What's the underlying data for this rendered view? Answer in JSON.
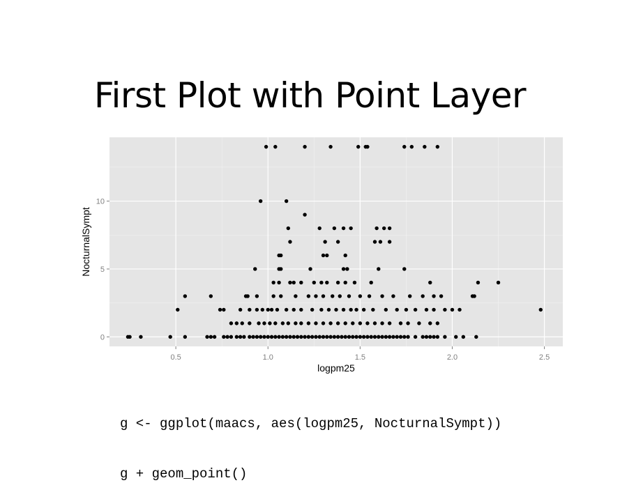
{
  "slide": {
    "title": "First Plot with Point Layer",
    "code_lines": [
      "g <- ggplot(maacs, aes(logpm25, NocturnalSympt))",
      "g + geom_point()"
    ]
  },
  "colors": {
    "panel_bg": "#e5e5e5",
    "grid": "#ffffff",
    "point": "#000000",
    "axis_text": "#7f7f7f"
  },
  "chart_data": {
    "type": "scatter",
    "title": "",
    "xlabel": "logpm25",
    "ylabel": "NocturnalSympt",
    "xlim": [
      0.14,
      2.6
    ],
    "ylim": [
      -0.7,
      14.7
    ],
    "x_ticks": [
      0.5,
      1.0,
      1.5,
      2.0,
      2.5
    ],
    "x_tick_labels": [
      "0.5",
      "1.0",
      "1.5",
      "2.0",
      "2.5"
    ],
    "y_ticks": [
      0,
      5,
      10
    ],
    "y_tick_labels": [
      "0",
      "5",
      "10"
    ],
    "grid": true,
    "points": [
      [
        0.99,
        14
      ],
      [
        1.04,
        14
      ],
      [
        1.2,
        14
      ],
      [
        1.34,
        14
      ],
      [
        1.49,
        14
      ],
      [
        1.53,
        14
      ],
      [
        1.54,
        14
      ],
      [
        1.74,
        14
      ],
      [
        1.78,
        14
      ],
      [
        1.85,
        14
      ],
      [
        1.92,
        14
      ],
      [
        0.96,
        10
      ],
      [
        1.1,
        10
      ],
      [
        1.2,
        9
      ],
      [
        1.11,
        8
      ],
      [
        1.28,
        8
      ],
      [
        1.36,
        8
      ],
      [
        1.41,
        8
      ],
      [
        1.45,
        8
      ],
      [
        1.59,
        8
      ],
      [
        1.63,
        8
      ],
      [
        1.66,
        8
      ],
      [
        1.12,
        7
      ],
      [
        1.31,
        7
      ],
      [
        1.38,
        7
      ],
      [
        1.58,
        7
      ],
      [
        1.61,
        7
      ],
      [
        1.66,
        7
      ],
      [
        1.06,
        6
      ],
      [
        1.07,
        6
      ],
      [
        1.3,
        6
      ],
      [
        1.32,
        6
      ],
      [
        1.42,
        6
      ],
      [
        0.93,
        5
      ],
      [
        1.06,
        5
      ],
      [
        1.07,
        5
      ],
      [
        1.23,
        5
      ],
      [
        1.41,
        5
      ],
      [
        1.43,
        5
      ],
      [
        1.6,
        5
      ],
      [
        1.74,
        5
      ],
      [
        1.03,
        4
      ],
      [
        1.06,
        4
      ],
      [
        1.12,
        4
      ],
      [
        1.14,
        4
      ],
      [
        1.18,
        4
      ],
      [
        1.25,
        4
      ],
      [
        1.29,
        4
      ],
      [
        1.32,
        4
      ],
      [
        1.38,
        4
      ],
      [
        1.42,
        4
      ],
      [
        1.47,
        4
      ],
      [
        1.56,
        4
      ],
      [
        1.88,
        4
      ],
      [
        2.14,
        4
      ],
      [
        2.25,
        4
      ],
      [
        0.55,
        3
      ],
      [
        0.69,
        3
      ],
      [
        0.88,
        3
      ],
      [
        0.89,
        3
      ],
      [
        0.94,
        3
      ],
      [
        1.03,
        3
      ],
      [
        1.07,
        3
      ],
      [
        1.15,
        3
      ],
      [
        1.22,
        3
      ],
      [
        1.26,
        3
      ],
      [
        1.3,
        3
      ],
      [
        1.35,
        3
      ],
      [
        1.39,
        3
      ],
      [
        1.44,
        3
      ],
      [
        1.5,
        3
      ],
      [
        1.55,
        3
      ],
      [
        1.62,
        3
      ],
      [
        1.68,
        3
      ],
      [
        1.77,
        3
      ],
      [
        1.84,
        3
      ],
      [
        1.9,
        3
      ],
      [
        1.94,
        3
      ],
      [
        2.11,
        3
      ],
      [
        2.12,
        3
      ],
      [
        0.51,
        2
      ],
      [
        0.74,
        2
      ],
      [
        0.76,
        2
      ],
      [
        0.85,
        2
      ],
      [
        0.9,
        2
      ],
      [
        0.94,
        2
      ],
      [
        0.97,
        2
      ],
      [
        1.0,
        2
      ],
      [
        1.02,
        2
      ],
      [
        1.05,
        2
      ],
      [
        1.1,
        2
      ],
      [
        1.14,
        2
      ],
      [
        1.18,
        2
      ],
      [
        1.24,
        2
      ],
      [
        1.29,
        2
      ],
      [
        1.33,
        2
      ],
      [
        1.37,
        2
      ],
      [
        1.41,
        2
      ],
      [
        1.45,
        2
      ],
      [
        1.48,
        2
      ],
      [
        1.52,
        2
      ],
      [
        1.57,
        2
      ],
      [
        1.64,
        2
      ],
      [
        1.7,
        2
      ],
      [
        1.75,
        2
      ],
      [
        1.8,
        2
      ],
      [
        1.86,
        2
      ],
      [
        1.9,
        2
      ],
      [
        1.96,
        2
      ],
      [
        2.0,
        2
      ],
      [
        2.04,
        2
      ],
      [
        2.48,
        2
      ],
      [
        0.8,
        1
      ],
      [
        0.83,
        1
      ],
      [
        0.86,
        1
      ],
      [
        0.9,
        1
      ],
      [
        0.95,
        1
      ],
      [
        0.98,
        1
      ],
      [
        1.01,
        1
      ],
      [
        1.04,
        1
      ],
      [
        1.08,
        1
      ],
      [
        1.11,
        1
      ],
      [
        1.15,
        1
      ],
      [
        1.18,
        1
      ],
      [
        1.22,
        1
      ],
      [
        1.26,
        1
      ],
      [
        1.3,
        1
      ],
      [
        1.34,
        1
      ],
      [
        1.38,
        1
      ],
      [
        1.42,
        1
      ],
      [
        1.46,
        1
      ],
      [
        1.5,
        1
      ],
      [
        1.54,
        1
      ],
      [
        1.58,
        1
      ],
      [
        1.62,
        1
      ],
      [
        1.66,
        1
      ],
      [
        1.72,
        1
      ],
      [
        1.76,
        1
      ],
      [
        1.82,
        1
      ],
      [
        1.88,
        1
      ],
      [
        1.92,
        1
      ],
      [
        0.24,
        0
      ],
      [
        0.25,
        0
      ],
      [
        0.31,
        0
      ],
      [
        0.47,
        0
      ],
      [
        0.55,
        0
      ],
      [
        0.67,
        0
      ],
      [
        0.69,
        0
      ],
      [
        0.71,
        0
      ],
      [
        0.76,
        0
      ],
      [
        0.78,
        0
      ],
      [
        0.8,
        0
      ],
      [
        0.83,
        0
      ],
      [
        0.85,
        0
      ],
      [
        0.87,
        0
      ],
      [
        0.9,
        0
      ],
      [
        0.92,
        0
      ],
      [
        0.94,
        0
      ],
      [
        0.96,
        0
      ],
      [
        0.98,
        0
      ],
      [
        1.0,
        0
      ],
      [
        1.02,
        0
      ],
      [
        1.04,
        0
      ],
      [
        1.06,
        0
      ],
      [
        1.08,
        0
      ],
      [
        1.1,
        0
      ],
      [
        1.12,
        0
      ],
      [
        1.14,
        0
      ],
      [
        1.16,
        0
      ],
      [
        1.18,
        0
      ],
      [
        1.2,
        0
      ],
      [
        1.22,
        0
      ],
      [
        1.24,
        0
      ],
      [
        1.26,
        0
      ],
      [
        1.28,
        0
      ],
      [
        1.3,
        0
      ],
      [
        1.32,
        0
      ],
      [
        1.34,
        0
      ],
      [
        1.36,
        0
      ],
      [
        1.38,
        0
      ],
      [
        1.4,
        0
      ],
      [
        1.42,
        0
      ],
      [
        1.44,
        0
      ],
      [
        1.46,
        0
      ],
      [
        1.48,
        0
      ],
      [
        1.5,
        0
      ],
      [
        1.52,
        0
      ],
      [
        1.54,
        0
      ],
      [
        1.56,
        0
      ],
      [
        1.58,
        0
      ],
      [
        1.6,
        0
      ],
      [
        1.62,
        0
      ],
      [
        1.64,
        0
      ],
      [
        1.66,
        0
      ],
      [
        1.68,
        0
      ],
      [
        1.7,
        0
      ],
      [
        1.72,
        0
      ],
      [
        1.74,
        0
      ],
      [
        1.76,
        0
      ],
      [
        1.8,
        0
      ],
      [
        1.84,
        0
      ],
      [
        1.86,
        0
      ],
      [
        1.88,
        0
      ],
      [
        1.9,
        0
      ],
      [
        1.92,
        0
      ],
      [
        1.96,
        0
      ],
      [
        2.02,
        0
      ],
      [
        2.06,
        0
      ],
      [
        2.13,
        0
      ]
    ]
  }
}
